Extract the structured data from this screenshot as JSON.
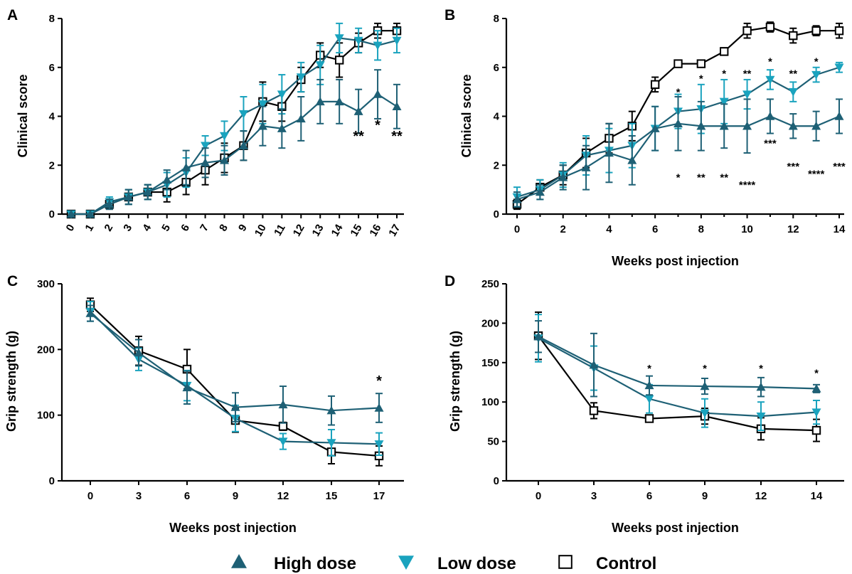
{
  "colors": {
    "high": "#1e6075",
    "low": "#1aa3be",
    "control": "#000000",
    "axis": "#000000"
  },
  "legend": {
    "items": [
      {
        "key": "high",
        "label": "High dose",
        "marker": "triangle-up"
      },
      {
        "key": "low",
        "label": "Low dose",
        "marker": "triangle-down"
      },
      {
        "key": "control",
        "label": "Control",
        "marker": "open-square"
      }
    ]
  },
  "chart_data": [
    {
      "panel": "A",
      "type": "line",
      "xlabel": "",
      "ylabel": "Clinical score",
      "xlim": [
        0,
        17
      ],
      "ylim": [
        0,
        8
      ],
      "xticks": [
        "0",
        "1",
        "2",
        "3",
        "4",
        "5",
        "6",
        "7",
        "8",
        "9",
        "10",
        "11",
        "12",
        "13",
        "14",
        "15",
        "16",
        "17"
      ],
      "yticks": [
        "0",
        "2",
        "4",
        "6",
        "8"
      ],
      "x_tick_rotated": true,
      "series": [
        {
          "key": "high",
          "name": "High dose",
          "x": [
            0,
            1,
            2,
            3,
            4,
            5,
            6,
            7,
            8,
            9,
            10,
            11,
            12,
            13,
            14,
            15,
            16,
            17
          ],
          "y": [
            0,
            0,
            0.4,
            0.7,
            0.9,
            1.4,
            1.9,
            2.1,
            2.2,
            2.8,
            3.6,
            3.5,
            3.9,
            4.6,
            4.6,
            4.2,
            4.9,
            4.4
          ],
          "err": [
            0,
            0,
            0.2,
            0.3,
            0.3,
            0.4,
            0.7,
            0.6,
            0.6,
            0.6,
            0.8,
            0.8,
            0.9,
            0.9,
            0.9,
            0.9,
            1.0,
            0.9
          ]
        },
        {
          "key": "low",
          "name": "Low dose",
          "x": [
            0,
            1,
            2,
            3,
            4,
            5,
            6,
            7,
            8,
            9,
            10,
            11,
            12,
            13,
            14,
            15,
            16,
            17
          ],
          "y": [
            0,
            0,
            0.5,
            0.7,
            0.9,
            1.2,
            1.7,
            2.8,
            3.2,
            4.1,
            4.5,
            4.9,
            5.6,
            6.1,
            7.2,
            7.1,
            6.9,
            7.1
          ],
          "err": [
            0,
            0,
            0.2,
            0.3,
            0.3,
            0.5,
            0.6,
            0.4,
            0.6,
            0.7,
            0.8,
            0.8,
            0.6,
            0.8,
            0.6,
            0.5,
            0.6,
            0.5
          ]
        },
        {
          "key": "control",
          "name": "Control",
          "x": [
            0,
            1,
            2,
            3,
            4,
            5,
            6,
            7,
            8,
            9,
            10,
            11,
            12,
            13,
            14,
            15,
            16,
            17
          ],
          "y": [
            0,
            0,
            0.4,
            0.7,
            0.9,
            0.9,
            1.3,
            1.8,
            2.3,
            2.8,
            4.6,
            4.4,
            5.5,
            6.5,
            6.3,
            7.0,
            7.5,
            7.5
          ],
          "err": [
            0,
            0,
            0.2,
            0.3,
            0.3,
            0.4,
            0.5,
            0.6,
            0.6,
            0.6,
            0.8,
            0.6,
            0.5,
            0.5,
            0.7,
            0.4,
            0.3,
            0.3
          ]
        }
      ],
      "annotations": [
        {
          "x": 15,
          "y": 3.0,
          "text": "**",
          "size": 20
        },
        {
          "x": 16,
          "y": 3.45,
          "text": "*",
          "size": 20
        },
        {
          "x": 17,
          "y": 3.0,
          "text": "**",
          "size": 20
        }
      ]
    },
    {
      "panel": "B",
      "type": "line",
      "xlabel": "Weeks post injection",
      "ylabel": "Clinical score",
      "xlim": [
        0,
        14
      ],
      "ylim": [
        0,
        8
      ],
      "xticks": [
        "0",
        "2",
        "4",
        "6",
        "8",
        "10",
        "12",
        "14"
      ],
      "xtick_values": [
        0,
        2,
        4,
        6,
        8,
        10,
        12,
        14
      ],
      "yticks": [
        "0",
        "2",
        "4",
        "6",
        "8"
      ],
      "series": [
        {
          "key": "high",
          "name": "High dose",
          "x": [
            0,
            1,
            2,
            3,
            4,
            5,
            6,
            7,
            8,
            9,
            10,
            11,
            12,
            13,
            14
          ],
          "y": [
            0.6,
            0.9,
            1.5,
            1.9,
            2.5,
            2.2,
            3.5,
            3.7,
            3.6,
            3.6,
            3.6,
            4.0,
            3.6,
            3.6,
            4.0
          ],
          "err": [
            0.3,
            0.3,
            0.5,
            0.9,
            1.2,
            1.0,
            0.9,
            1.1,
            1.0,
            0.9,
            1.1,
            0.7,
            0.5,
            0.6,
            0.7
          ]
        },
        {
          "key": "low",
          "name": "Low dose",
          "x": [
            0,
            1,
            2,
            3,
            4,
            5,
            6,
            7,
            8,
            9,
            10,
            11,
            12,
            13,
            14
          ],
          "y": [
            0.7,
            1.0,
            1.6,
            2.4,
            2.6,
            2.8,
            3.5,
            4.2,
            4.3,
            4.6,
            4.9,
            5.5,
            5.0,
            5.7,
            6.0
          ],
          "err": [
            0.4,
            0.4,
            0.5,
            0.8,
            0.9,
            0.9,
            0.9,
            0.7,
            1.0,
            0.9,
            0.6,
            0.4,
            0.4,
            0.3,
            0.2
          ]
        },
        {
          "key": "control",
          "name": "Control",
          "x": [
            0,
            1,
            2,
            3,
            4,
            5,
            6,
            7,
            8,
            9,
            10,
            11,
            12,
            13,
            14
          ],
          "y": [
            0.4,
            1.1,
            1.6,
            2.5,
            3.1,
            3.6,
            5.3,
            6.15,
            6.15,
            6.65,
            7.5,
            7.65,
            7.3,
            7.5,
            7.5
          ],
          "err": [
            0.2,
            0.3,
            0.4,
            0.6,
            0.6,
            0.6,
            0.3,
            0.1,
            0.1,
            0.15,
            0.3,
            0.2,
            0.3,
            0.2,
            0.3
          ]
        }
      ],
      "annotations": [
        {
          "x": 7,
          "y": 4.85,
          "text": "*",
          "size": 15
        },
        {
          "x": 8,
          "y": 5.4,
          "text": "*",
          "size": 15
        },
        {
          "x": 9,
          "y": 5.6,
          "text": "*",
          "size": 15
        },
        {
          "x": 10,
          "y": 5.6,
          "text": "**",
          "size": 15
        },
        {
          "x": 11,
          "y": 6.1,
          "text": "*",
          "size": 15
        },
        {
          "x": 12,
          "y": 5.6,
          "text": "**",
          "size": 15
        },
        {
          "x": 13,
          "y": 6.1,
          "text": "*",
          "size": 15
        },
        {
          "x": 7,
          "y": 1.35,
          "text": "*",
          "size": 15
        },
        {
          "x": 8,
          "y": 1.35,
          "text": "**",
          "size": 15
        },
        {
          "x": 9,
          "y": 1.35,
          "text": "**",
          "size": 15
        },
        {
          "x": 10,
          "y": 1.05,
          "text": "****",
          "size": 15
        },
        {
          "x": 11,
          "y": 2.75,
          "text": "***",
          "size": 15
        },
        {
          "x": 12,
          "y": 1.8,
          "text": "***",
          "size": 15
        },
        {
          "x": 13,
          "y": 1.5,
          "text": "****",
          "size": 15
        },
        {
          "x": 14,
          "y": 1.8,
          "text": "***",
          "size": 15
        }
      ]
    },
    {
      "panel": "C",
      "type": "line",
      "xlabel": "Weeks post injection",
      "ylabel": "Grip strength (g)",
      "xcategories": [
        "0",
        "3",
        "6",
        "9",
        "12",
        "15",
        "17"
      ],
      "ylim": [
        0,
        300
      ],
      "yticks": [
        "0",
        "100",
        "200",
        "300"
      ],
      "series": [
        {
          "key": "high",
          "name": "High dose",
          "y": [
            255,
            195,
            142,
            112,
            116,
            107,
            111
          ],
          "err": [
            12,
            20,
            25,
            22,
            28,
            22,
            22
          ]
        },
        {
          "key": "low",
          "name": "Low dose",
          "y": [
            258,
            185,
            145,
            95,
            60,
            58,
            56
          ],
          "err": [
            15,
            17,
            23,
            20,
            12,
            20,
            17
          ]
        },
        {
          "key": "control",
          "name": "Control",
          "y": [
            268,
            198,
            170,
            92,
            83,
            44,
            38
          ],
          "err": [
            10,
            22,
            30,
            18,
            6,
            18,
            15
          ]
        }
      ],
      "annotations": [
        {
          "x": 6,
          "y": 145,
          "text": "*",
          "size": 20
        }
      ]
    },
    {
      "panel": "D",
      "type": "line",
      "xlabel": "Weeks post injection",
      "ylabel": "Grip strength (g)",
      "xcategories": [
        "0",
        "3",
        "6",
        "9",
        "12",
        "14"
      ],
      "ylim": [
        0,
        250
      ],
      "yticks": [
        "0",
        "50",
        "100",
        "150",
        "200",
        "250"
      ],
      "series": [
        {
          "key": "high",
          "name": "High dose",
          "y": [
            183,
            147,
            121,
            120,
            119,
            117
          ],
          "err": [
            20,
            40,
            12,
            10,
            12,
            5
          ]
        },
        {
          "key": "low",
          "name": "Low dose",
          "y": [
            181,
            143,
            104,
            86,
            82,
            87
          ],
          "err": [
            30,
            28,
            18,
            18,
            18,
            15
          ]
        },
        {
          "key": "control",
          "name": "Control",
          "y": [
            184,
            89,
            79,
            82,
            66,
            64
          ],
          "err": [
            30,
            10,
            4,
            10,
            14,
            14
          ]
        }
      ],
      "annotations": [
        {
          "x": 2,
          "y": 138,
          "text": "*",
          "size": 15
        },
        {
          "x": 3,
          "y": 138,
          "text": "*",
          "size": 15
        },
        {
          "x": 4,
          "y": 138,
          "text": "*",
          "size": 15
        },
        {
          "x": 5,
          "y": 132,
          "text": "*",
          "size": 15
        }
      ]
    }
  ]
}
